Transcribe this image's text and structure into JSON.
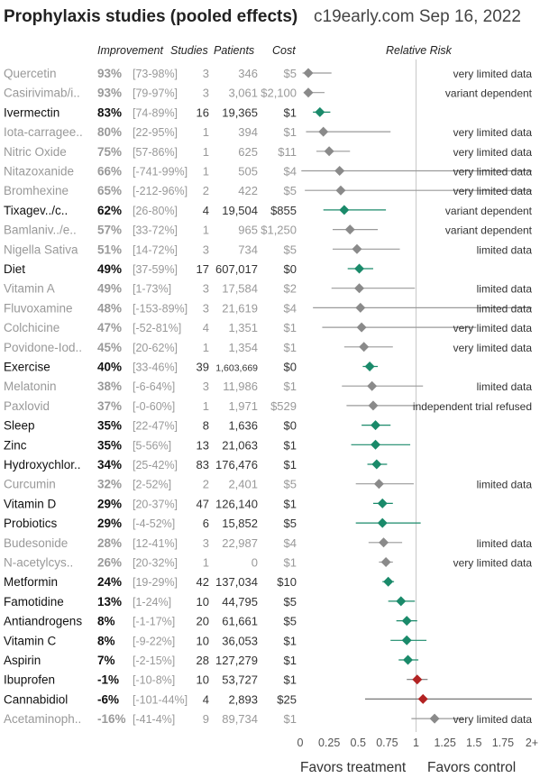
{
  "header": {
    "title": "Prophylaxis studies (pooled effects)",
    "source": "c19early.com Sep 16, 2022"
  },
  "columns": {
    "improvement": "Improvement",
    "studies": "Studies",
    "patients": "Patients",
    "cost": "Cost",
    "relative_risk": "Relative Risk"
  },
  "footer": {
    "favors_treatment": "Favors treatment",
    "favors_control": "Favors control"
  },
  "colors": {
    "favorable": "#1a8a6a",
    "unfavorable": "#b22222",
    "limited": "#8a8a8a",
    "line_gray": "#9a9a9a",
    "text_dark": "#111111",
    "text_gray": "#999999"
  },
  "chart_data": {
    "type": "forest",
    "xlabel": "",
    "xlim": [
      0,
      2
    ],
    "x_ticks": [
      "0",
      "0.25",
      "0.5",
      "0.75",
      "1",
      "1.25",
      "1.5",
      "1.75",
      "2+"
    ],
    "reference_line": 1,
    "rows": [
      {
        "name": "Quercetin",
        "improvement": "93%",
        "ci": "[73-98%]",
        "studies": "3",
        "patients": "346",
        "cost": "$5",
        "rr": 0.07,
        "lo": 0.02,
        "hi": 0.27,
        "note": "very limited data",
        "style": "limited"
      },
      {
        "name": "Casirivimab/i..",
        "improvement": "93%",
        "ci": "[79-97%]",
        "studies": "3",
        "patients": "3,061",
        "cost": "$2,100",
        "rr": 0.07,
        "lo": 0.03,
        "hi": 0.21,
        "note": "variant dependent",
        "style": "limited"
      },
      {
        "name": "Ivermectin",
        "improvement": "83%",
        "ci": "[74-89%]",
        "studies": "16",
        "patients": "19,365",
        "cost": "$1",
        "rr": 0.17,
        "lo": 0.11,
        "hi": 0.26,
        "note": "",
        "style": "favorable"
      },
      {
        "name": "Iota-carragee..",
        "improvement": "80%",
        "ci": "[22-95%]",
        "studies": "1",
        "patients": "394",
        "cost": "$1",
        "rr": 0.2,
        "lo": 0.05,
        "hi": 0.78,
        "note": "very limited data",
        "style": "limited"
      },
      {
        "name": "Nitric Oxide",
        "improvement": "75%",
        "ci": "[57-86%]",
        "studies": "1",
        "patients": "625",
        "cost": "$11",
        "rr": 0.25,
        "lo": 0.14,
        "hi": 0.43,
        "note": "very limited data",
        "style": "limited"
      },
      {
        "name": "Nitazoxanide",
        "improvement": "66%",
        "ci": "[-741-99%]",
        "studies": "1",
        "patients": "505",
        "cost": "$4",
        "rr": 0.34,
        "lo": 0.01,
        "hi": 2.0,
        "note": "very limited data",
        "style": "limited"
      },
      {
        "name": "Bromhexine",
        "improvement": "65%",
        "ci": "[-212-96%]",
        "studies": "2",
        "patients": "422",
        "cost": "$5",
        "rr": 0.35,
        "lo": 0.04,
        "hi": 2.0,
        "note": "very limited data",
        "style": "limited"
      },
      {
        "name": "Tixagev../c..",
        "improvement": "62%",
        "ci": "[26-80%]",
        "studies": "4",
        "patients": "19,504",
        "cost": "$855",
        "rr": 0.38,
        "lo": 0.2,
        "hi": 0.74,
        "note": "variant dependent",
        "style": "favorable"
      },
      {
        "name": "Bamlaniv../e..",
        "improvement": "57%",
        "ci": "[33-72%]",
        "studies": "1",
        "patients": "965",
        "cost": "$1,250",
        "rr": 0.43,
        "lo": 0.28,
        "hi": 0.67,
        "note": "variant dependent",
        "style": "limited"
      },
      {
        "name": "Nigella Sativa",
        "improvement": "51%",
        "ci": "[14-72%]",
        "studies": "3",
        "patients": "734",
        "cost": "$5",
        "rr": 0.49,
        "lo": 0.28,
        "hi": 0.86,
        "note": "limited data",
        "style": "limited"
      },
      {
        "name": "Diet",
        "improvement": "49%",
        "ci": "[37-59%]",
        "studies": "17",
        "patients": "607,017",
        "cost": "$0",
        "rr": 0.51,
        "lo": 0.41,
        "hi": 0.63,
        "note": "",
        "style": "favorable"
      },
      {
        "name": "Vitamin A",
        "improvement": "49%",
        "ci": "[1-73%]",
        "studies": "3",
        "patients": "17,584",
        "cost": "$2",
        "rr": 0.51,
        "lo": 0.27,
        "hi": 0.99,
        "note": "limited data",
        "style": "limited"
      },
      {
        "name": "Fluvoxamine",
        "improvement": "48%",
        "ci": "[-153-89%]",
        "studies": "3",
        "patients": "21,619",
        "cost": "$4",
        "rr": 0.52,
        "lo": 0.11,
        "hi": 2.0,
        "note": "limited data",
        "style": "limited"
      },
      {
        "name": "Colchicine",
        "improvement": "47%",
        "ci": "[-52-81%]",
        "studies": "4",
        "patients": "1,351",
        "cost": "$1",
        "rr": 0.53,
        "lo": 0.19,
        "hi": 1.52,
        "note": "very limited data",
        "style": "limited"
      },
      {
        "name": "Povidone-Iod..",
        "improvement": "45%",
        "ci": "[20-62%]",
        "studies": "1",
        "patients": "1,354",
        "cost": "$1",
        "rr": 0.55,
        "lo": 0.38,
        "hi": 0.8,
        "note": "very limited data",
        "style": "limited"
      },
      {
        "name": "Exercise",
        "improvement": "40%",
        "ci": "[33-46%]",
        "studies": "39",
        "patients": "1,603,669",
        "cost": "$0",
        "rr": 0.6,
        "lo": 0.54,
        "hi": 0.67,
        "note": "",
        "style": "favorable"
      },
      {
        "name": "Melatonin",
        "improvement": "38%",
        "ci": "[-6-64%]",
        "studies": "3",
        "patients": "11,986",
        "cost": "$1",
        "rr": 0.62,
        "lo": 0.36,
        "hi": 1.06,
        "note": "limited data",
        "style": "limited"
      },
      {
        "name": "Paxlovid",
        "improvement": "37%",
        "ci": "[-0-60%]",
        "studies": "1",
        "patients": "1,971",
        "cost": "$529",
        "rr": 0.63,
        "lo": 0.4,
        "hi": 1.0,
        "note": "independent trial refused",
        "style": "limited"
      },
      {
        "name": "Sleep",
        "improvement": "35%",
        "ci": "[22-47%]",
        "studies": "8",
        "patients": "1,636",
        "cost": "$0",
        "rr": 0.65,
        "lo": 0.53,
        "hi": 0.78,
        "note": "",
        "style": "favorable"
      },
      {
        "name": "Zinc",
        "improvement": "35%",
        "ci": "[5-56%]",
        "studies": "13",
        "patients": "21,063",
        "cost": "$1",
        "rr": 0.65,
        "lo": 0.44,
        "hi": 0.95,
        "note": "",
        "style": "favorable"
      },
      {
        "name": "Hydroxychlor..",
        "improvement": "34%",
        "ci": "[25-42%]",
        "studies": "83",
        "patients": "176,476",
        "cost": "$1",
        "rr": 0.66,
        "lo": 0.58,
        "hi": 0.75,
        "note": "",
        "style": "favorable"
      },
      {
        "name": "Curcumin",
        "improvement": "32%",
        "ci": "[2-52%]",
        "studies": "2",
        "patients": "2,401",
        "cost": "$5",
        "rr": 0.68,
        "lo": 0.48,
        "hi": 0.98,
        "note": "limited data",
        "style": "limited"
      },
      {
        "name": "Vitamin D",
        "improvement": "29%",
        "ci": "[20-37%]",
        "studies": "47",
        "patients": "126,140",
        "cost": "$1",
        "rr": 0.71,
        "lo": 0.63,
        "hi": 0.8,
        "note": "",
        "style": "favorable"
      },
      {
        "name": "Probiotics",
        "improvement": "29%",
        "ci": "[-4-52%]",
        "studies": "6",
        "patients": "15,852",
        "cost": "$5",
        "rr": 0.71,
        "lo": 0.48,
        "hi": 1.04,
        "note": "",
        "style": "favorable"
      },
      {
        "name": "Budesonide",
        "improvement": "28%",
        "ci": "[12-41%]",
        "studies": "3",
        "patients": "22,987",
        "cost": "$4",
        "rr": 0.72,
        "lo": 0.59,
        "hi": 0.88,
        "note": "limited data",
        "style": "limited"
      },
      {
        "name": "N-acetylcys..",
        "improvement": "26%",
        "ci": "[20-32%]",
        "studies": "1",
        "patients": "0",
        "cost": "$1",
        "rr": 0.74,
        "lo": 0.68,
        "hi": 0.8,
        "note": "very limited data",
        "style": "limited"
      },
      {
        "name": "Metformin",
        "improvement": "24%",
        "ci": "[19-29%]",
        "studies": "42",
        "patients": "137,034",
        "cost": "$10",
        "rr": 0.76,
        "lo": 0.71,
        "hi": 0.81,
        "note": "",
        "style": "favorable"
      },
      {
        "name": "Famotidine",
        "improvement": "13%",
        "ci": "[1-24%]",
        "studies": "10",
        "patients": "44,795",
        "cost": "$5",
        "rr": 0.87,
        "lo": 0.76,
        "hi": 0.99,
        "note": "",
        "style": "favorable"
      },
      {
        "name": "Antiandrogens",
        "improvement": "8%",
        "ci": "[-1-17%]",
        "studies": "20",
        "patients": "61,661",
        "cost": "$5",
        "rr": 0.92,
        "lo": 0.83,
        "hi": 1.01,
        "note": "",
        "style": "favorable"
      },
      {
        "name": "Vitamin C",
        "improvement": "8%",
        "ci": "[-9-22%]",
        "studies": "10",
        "patients": "36,053",
        "cost": "$1",
        "rr": 0.92,
        "lo": 0.78,
        "hi": 1.09,
        "note": "",
        "style": "favorable"
      },
      {
        "name": "Aspirin",
        "improvement": "7%",
        "ci": "[-2-15%]",
        "studies": "28",
        "patients": "127,279",
        "cost": "$1",
        "rr": 0.93,
        "lo": 0.85,
        "hi": 1.02,
        "note": "",
        "style": "favorable"
      },
      {
        "name": "Ibuprofen",
        "improvement": "-1%",
        "ci": "[-10-8%]",
        "studies": "10",
        "patients": "53,727",
        "cost": "$1",
        "rr": 1.01,
        "lo": 0.92,
        "hi": 1.1,
        "note": "",
        "style": "unfavorable"
      },
      {
        "name": "Cannabidiol",
        "improvement": "-6%",
        "ci": "[-101-44%]",
        "studies": "4",
        "patients": "2,893",
        "cost": "$25",
        "rr": 1.06,
        "lo": 0.56,
        "hi": 2.0,
        "note": "",
        "style": "unfavorable"
      },
      {
        "name": "Acetaminoph..",
        "improvement": "-16%",
        "ci": "[-41-4%]",
        "studies": "9",
        "patients": "89,734",
        "cost": "$1",
        "rr": 1.16,
        "lo": 0.96,
        "hi": 1.41,
        "note": "very limited data",
        "style": "limited"
      }
    ]
  }
}
